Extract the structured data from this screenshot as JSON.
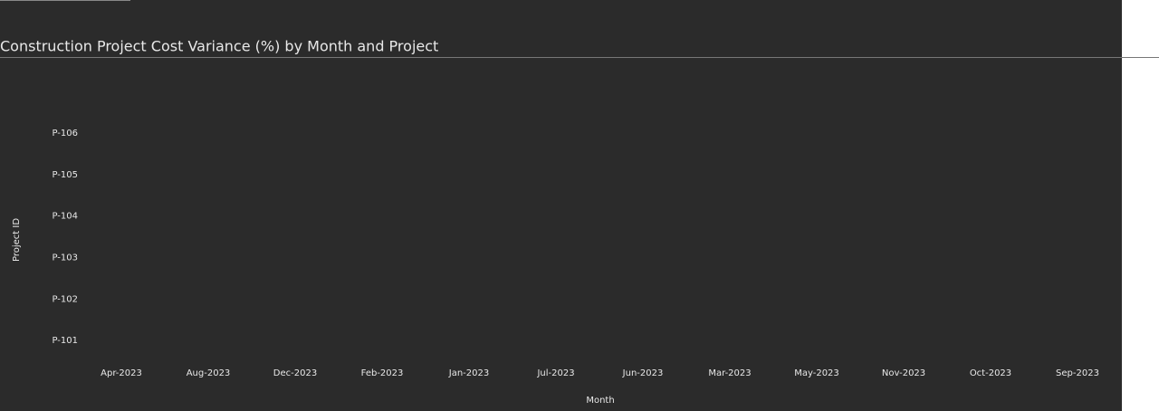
{
  "chart_data": {
    "type": "heatmap",
    "title": "Construction Project Cost Variance (%) by Month and Project",
    "x_label": "Month",
    "y_label": "Project ID",
    "x": [
      "Apr-2023",
      "Aug-2023",
      "Dec-2023",
      "Feb-2023",
      "Jan-2023",
      "Jul-2023",
      "Jun-2023",
      "Mar-2023",
      "May-2023",
      "Nov-2023",
      "Oct-2023",
      "Sep-2023"
    ],
    "y": [
      "P-101",
      "P-102",
      "P-103",
      "P-104",
      "P-105",
      "P-106"
    ]
  }
}
